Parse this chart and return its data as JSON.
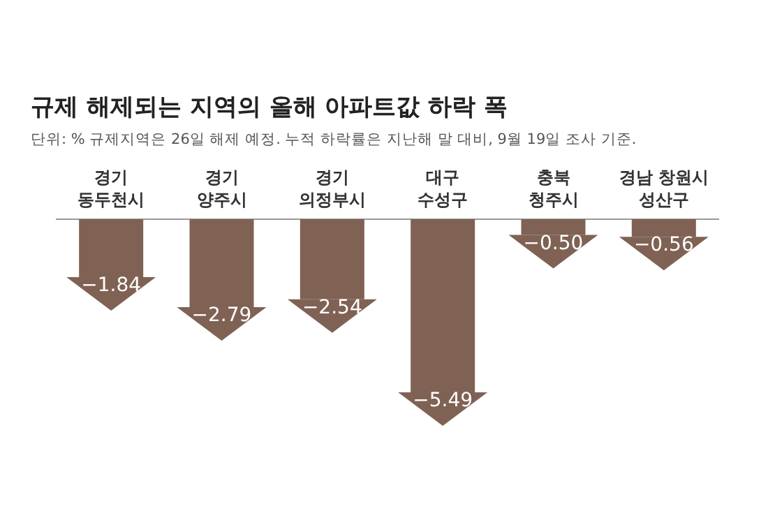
{
  "chart_data": {
    "type": "bar",
    "title": "규제 해제되는 지역의 올해 아파트값 하락 폭",
    "subtitle": "단위: % 규제지역은 26일 해제 예정. 누적 하락률은 지난해 말 대비, 9월 19일 조사 기준.",
    "categories": [
      "경기\n동두천시",
      "경기\n양주시",
      "경기\n의정부시",
      "대구\n수성구",
      "충북\n청주시",
      "경남 창원시\n성산구"
    ],
    "values": [
      -1.84,
      -2.79,
      -2.54,
      -5.49,
      -0.5,
      -0.56
    ],
    "value_labels": [
      "−1.84",
      "−2.79",
      "−2.54",
      "−5.49",
      "−0.50",
      "−0.56"
    ],
    "color": "#7f6254"
  }
}
